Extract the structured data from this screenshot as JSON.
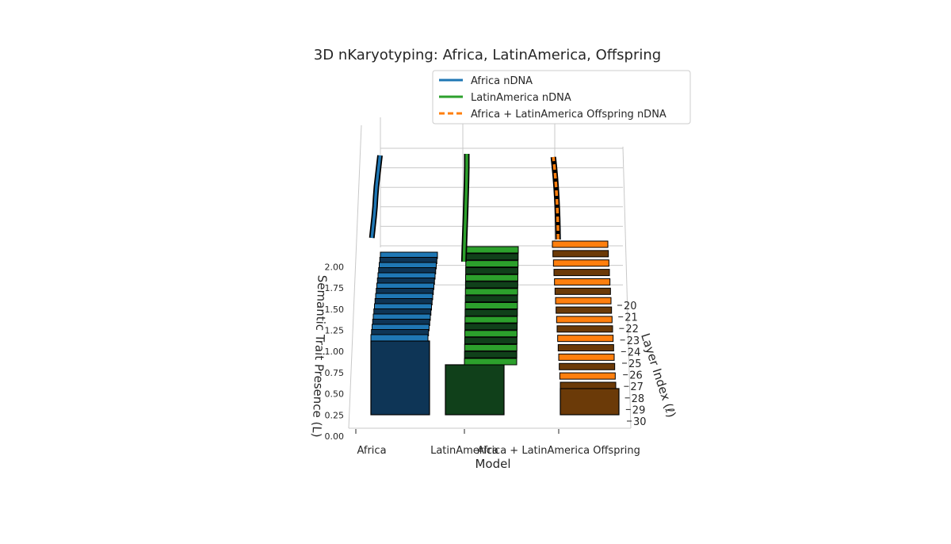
{
  "chart_data": {
    "type": "bar",
    "projection": "3d",
    "title": "3D nKaryotyping: Africa, LatinAmerica, Offspring",
    "xlabel": "Model",
    "ylabel": "Layer Index (ℓ)",
    "zlabel": "Semantic Trait Presence (L)",
    "categories": [
      "Africa",
      "LatinAmerica",
      "Africa + LatinAmerica Offspring"
    ],
    "layer_ticks": [
      "20",
      "21",
      "22",
      "23",
      "24",
      "25",
      "26",
      "27",
      "28",
      "29",
      "30"
    ],
    "z_ticks": [
      "0.00",
      "0.25",
      "0.50",
      "0.75",
      "1.00",
      "1.25",
      "1.50",
      "1.75",
      "2.00"
    ],
    "legend_position": "upper-right",
    "grid": true,
    "legend": [
      {
        "label": "Africa nDNA",
        "color": "#1f77b4",
        "style": "solid"
      },
      {
        "label": "LatinAmerica nDNA",
        "color": "#2ca02c",
        "style": "solid"
      },
      {
        "label": "Africa + LatinAmerica Offspring nDNA",
        "color": "#ff7f0e",
        "style": "dashed"
      }
    ],
    "series": [
      {
        "name": "Africa nDNA",
        "color": "#1f77b4",
        "dark": "#0e3556",
        "bars": 17,
        "line": [
          0.72,
          0.86,
          1.0,
          1.12,
          1.2,
          1.3,
          1.45,
          1.6,
          1.75
        ]
      },
      {
        "name": "LatinAmerica nDNA",
        "color": "#2ca02c",
        "dark": "#10401a",
        "bars": 17,
        "line": [
          0.2,
          0.45,
          0.75,
          1.05,
          1.35,
          1.6,
          1.85,
          2.0,
          2.0
        ]
      },
      {
        "name": "Africa + LatinAmerica Offspring nDNA",
        "color": "#ff7f0e",
        "dark": "#6b3a08",
        "bars": 16,
        "line": [
          0.45,
          0.5,
          0.58,
          0.7,
          0.85,
          1.05,
          1.3,
          1.6,
          1.95
        ]
      }
    ]
  }
}
